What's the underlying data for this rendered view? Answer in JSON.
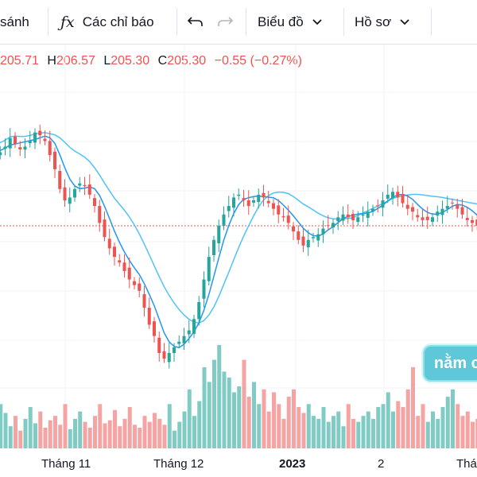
{
  "toolbar": {
    "compare_label": "sánh",
    "fx_glyph": "ƒx",
    "indicators_label": "Các chỉ báo",
    "chart_label": "Biểu đồ",
    "profile_label": "Hồ sơ"
  },
  "ohlc": {
    "o_value": "205.71",
    "h_label": "H",
    "h_value": "206.57",
    "l_label": "L",
    "l_value": "205.30",
    "c_label": "C",
    "c_value": "205.30",
    "change": "−0.55 (−0.27%)"
  },
  "xaxis": {
    "labels": [
      "Tháng 11",
      "Tháng 12",
      "2023",
      "2",
      "Thá"
    ]
  },
  "badge": {
    "text": "nằm c"
  },
  "colors": {
    "up": "#26a69a",
    "down": "#ef5350",
    "ma_fast": "#2196f3",
    "ma_slow": "#4fc3f7",
    "vol_up": "#80cbc4",
    "vol_down": "#f5a3a3"
  },
  "chart_data": {
    "type": "candlestick",
    "closes": [
      244,
      245,
      247,
      250,
      248,
      246,
      247,
      249,
      252,
      251,
      249,
      244,
      239,
      232,
      228,
      229,
      232,
      234,
      233,
      230,
      226,
      220,
      215,
      211,
      208,
      206,
      203,
      200,
      198,
      196,
      190,
      184,
      180,
      174,
      172,
      174,
      176,
      178,
      180,
      182,
      186,
      192,
      200,
      208,
      214,
      219,
      223,
      226,
      229,
      230,
      228,
      226,
      228,
      230,
      229,
      227,
      225,
      223,
      222,
      220,
      217,
      214,
      212,
      214,
      215,
      216,
      218,
      219,
      220,
      222,
      223,
      222,
      221,
      222,
      223,
      224,
      225,
      226,
      228,
      230,
      231,
      229,
      227,
      225,
      224,
      222,
      221,
      221,
      222,
      224,
      225,
      226,
      227,
      225,
      223,
      221,
      220,
      219
    ],
    "volumes": [
      18,
      30,
      24,
      15,
      22,
      12,
      20,
      28,
      17,
      25,
      14,
      19,
      22,
      16,
      30,
      13,
      20,
      25,
      18,
      14,
      22,
      30,
      17,
      19,
      26,
      15,
      20,
      28,
      16,
      14,
      22,
      18,
      24,
      20,
      16,
      30,
      12,
      18,
      25,
      40,
      22,
      32,
      55,
      45,
      60,
      70,
      52,
      48,
      38,
      42,
      60,
      35,
      45,
      30,
      40,
      25,
      38,
      30,
      20,
      35,
      40,
      28,
      24,
      30,
      22,
      20,
      28,
      18,
      22,
      25,
      15,
      30,
      20,
      18,
      22,
      25,
      20,
      28,
      30,
      38,
      25,
      32,
      28,
      40,
      55,
      22,
      30,
      18,
      25,
      20,
      28,
      35,
      40,
      30,
      22,
      25,
      18,
      20
    ]
  }
}
